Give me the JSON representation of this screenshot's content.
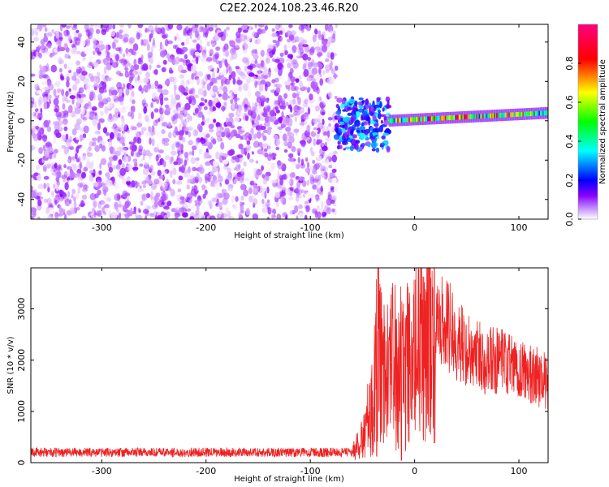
{
  "title": "C2E2.2024.108.23.46.R20",
  "chart_data": [
    {
      "type": "heatmap",
      "xlabel": "Height of straight line (km)",
      "ylabel": "Frequency (Hz)",
      "xlim": [
        -368,
        128
      ],
      "ylim": [
        -50,
        49
      ],
      "xticks": [
        -300,
        -200,
        -100,
        0,
        100
      ],
      "yticks": [
        -40,
        -20,
        0,
        20,
        40
      ],
      "colorbar": {
        "label": "Normalized spectral amplitude",
        "range": [
          0,
          1
        ],
        "ticks": [
          0.0,
          0.2,
          0.4,
          0.6,
          0.8
        ],
        "tick_labels": [
          "0.0",
          "0.2",
          "0.4",
          "0.6",
          "0.8"
        ],
        "colormap": [
          "#ffffff",
          "#8a00ff",
          "#0000ff",
          "#00ffff",
          "#00ff00",
          "#ffff00",
          "#ff0000",
          "#ff0080"
        ]
      },
      "regions": [
        {
          "description": "broadband noise",
          "x_range": [
            -368,
            -75
          ],
          "freq_range": [
            -50,
            49
          ],
          "amplitude_range": [
            0.0,
            0.15
          ]
        },
        {
          "description": "turbulent onset",
          "x_range": [
            -75,
            -25
          ],
          "freq_range": [
            -15,
            12
          ],
          "amplitude_range": [
            0.1,
            0.45
          ]
        },
        {
          "description": "coherent signal near 0 Hz",
          "x_range": [
            -25,
            128
          ],
          "freq_center": [
            0,
            4
          ],
          "amplitude_range": [
            0.3,
            1.0
          ]
        }
      ],
      "grid": false
    },
    {
      "type": "line",
      "xlabel": "Height of straight line (km)",
      "ylabel": "SNR (10 * v/v)",
      "xlim": [
        -368,
        128
      ],
      "ylim": [
        0,
        3800
      ],
      "xticks": [
        -300,
        -200,
        -100,
        0,
        100
      ],
      "yticks": [
        0,
        1000,
        2000,
        3000
      ],
      "color": "#ee2222",
      "series": [
        {
          "x": [
            -368,
            -300,
            -200,
            -100,
            -60,
            -50,
            -40,
            -35,
            -30,
            -20,
            -10,
            0,
            10,
            20,
            30,
            40,
            50,
            60,
            70,
            80,
            90,
            100,
            110,
            120,
            128
          ],
          "y": [
            200,
            200,
            200,
            200,
            200,
            450,
            1200,
            2300,
            1600,
            1900,
            1800,
            2100,
            2500,
            2600,
            2750,
            2400,
            2200,
            2100,
            2000,
            1950,
            1900,
            1800,
            1750,
            1650,
            1600
          ]
        }
      ],
      "grid": false
    }
  ]
}
